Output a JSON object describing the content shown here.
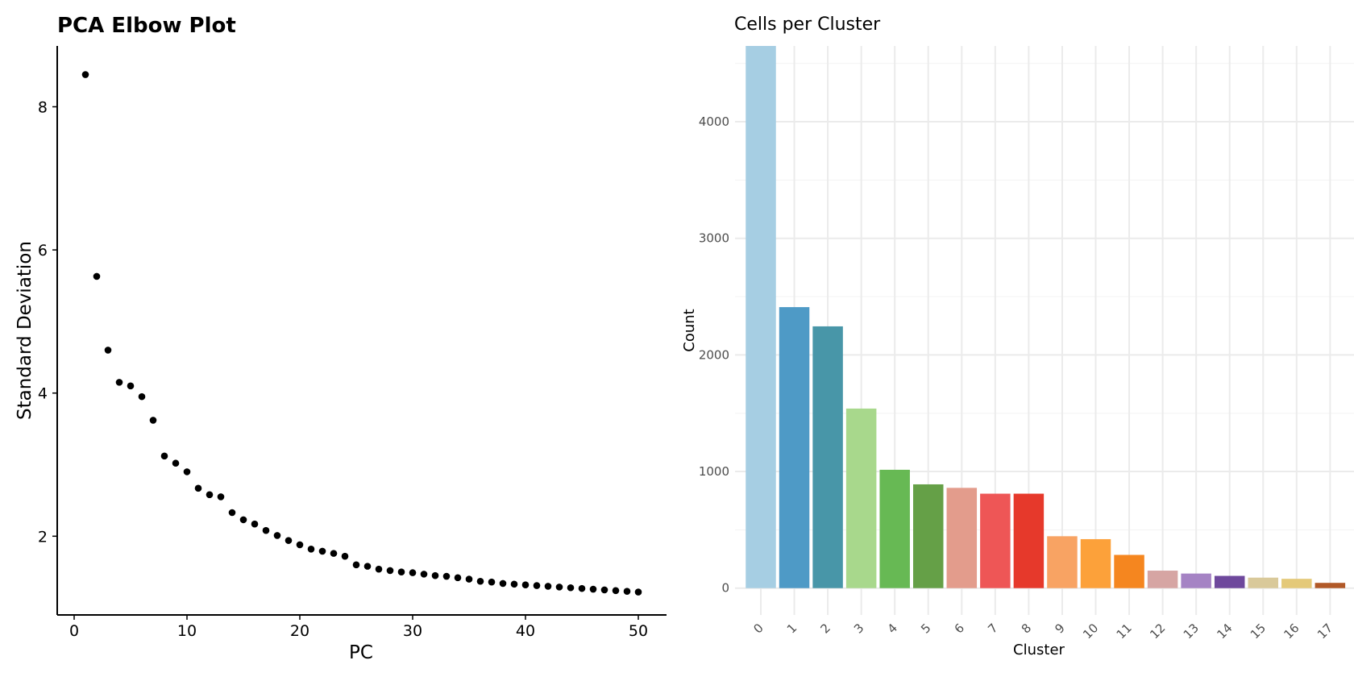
{
  "chart_data": [
    {
      "type": "scatter",
      "title": "PCA Elbow Plot",
      "xlabel": "PC",
      "ylabel": "Standard Deviation",
      "xlim": [
        -1.5,
        52.5
      ],
      "ylim": [
        0.9,
        8.85
      ],
      "xticks": [
        0,
        10,
        20,
        30,
        40,
        50
      ],
      "yticks": [
        2,
        4,
        6,
        8
      ],
      "grid": false,
      "x": [
        1,
        2,
        3,
        4,
        5,
        6,
        7,
        8,
        9,
        10,
        11,
        12,
        13,
        14,
        15,
        16,
        17,
        18,
        19,
        20,
        21,
        22,
        23,
        24,
        25,
        26,
        27,
        28,
        29,
        30,
        31,
        32,
        33,
        34,
        35,
        36,
        37,
        38,
        39,
        40,
        41,
        42,
        43,
        44,
        45,
        46,
        47,
        48,
        49,
        50
      ],
      "y": [
        8.45,
        5.63,
        4.6,
        4.15,
        4.1,
        3.95,
        3.62,
        3.12,
        3.02,
        2.9,
        2.67,
        2.58,
        2.55,
        2.33,
        2.23,
        2.17,
        2.08,
        2.01,
        1.94,
        1.88,
        1.82,
        1.79,
        1.76,
        1.72,
        1.6,
        1.58,
        1.54,
        1.52,
        1.5,
        1.49,
        1.47,
        1.45,
        1.44,
        1.42,
        1.4,
        1.37,
        1.36,
        1.34,
        1.33,
        1.32,
        1.31,
        1.3,
        1.29,
        1.28,
        1.27,
        1.26,
        1.25,
        1.24,
        1.23,
        1.22
      ]
    },
    {
      "type": "bar",
      "title": "Cells per Cluster",
      "xlabel": "Cluster",
      "ylabel": "Count",
      "ylim": [
        -230,
        4650
      ],
      "yticks": [
        0,
        1000,
        2000,
        3000,
        4000
      ],
      "grid": true,
      "categories": [
        "0",
        "1",
        "2",
        "3",
        "4",
        "5",
        "6",
        "7",
        "8",
        "9",
        "10",
        "11",
        "12",
        "13",
        "14",
        "15",
        "16",
        "17"
      ],
      "values": [
        4650,
        2410,
        2245,
        1540,
        1015,
        890,
        860,
        810,
        810,
        445,
        420,
        285,
        150,
        125,
        105,
        90,
        80,
        45
      ],
      "colors": [
        "#a6cee3",
        "#4e9ac6",
        "#4896a8",
        "#a8d88c",
        "#67b954",
        "#65a047",
        "#e39c8c",
        "#ee5656",
        "#e6392b",
        "#f8a363",
        "#fca13a",
        "#f5861f",
        "#d6a5a3",
        "#a583c4",
        "#6e489c",
        "#d9c99a",
        "#e4c979",
        "#b15928"
      ]
    }
  ]
}
